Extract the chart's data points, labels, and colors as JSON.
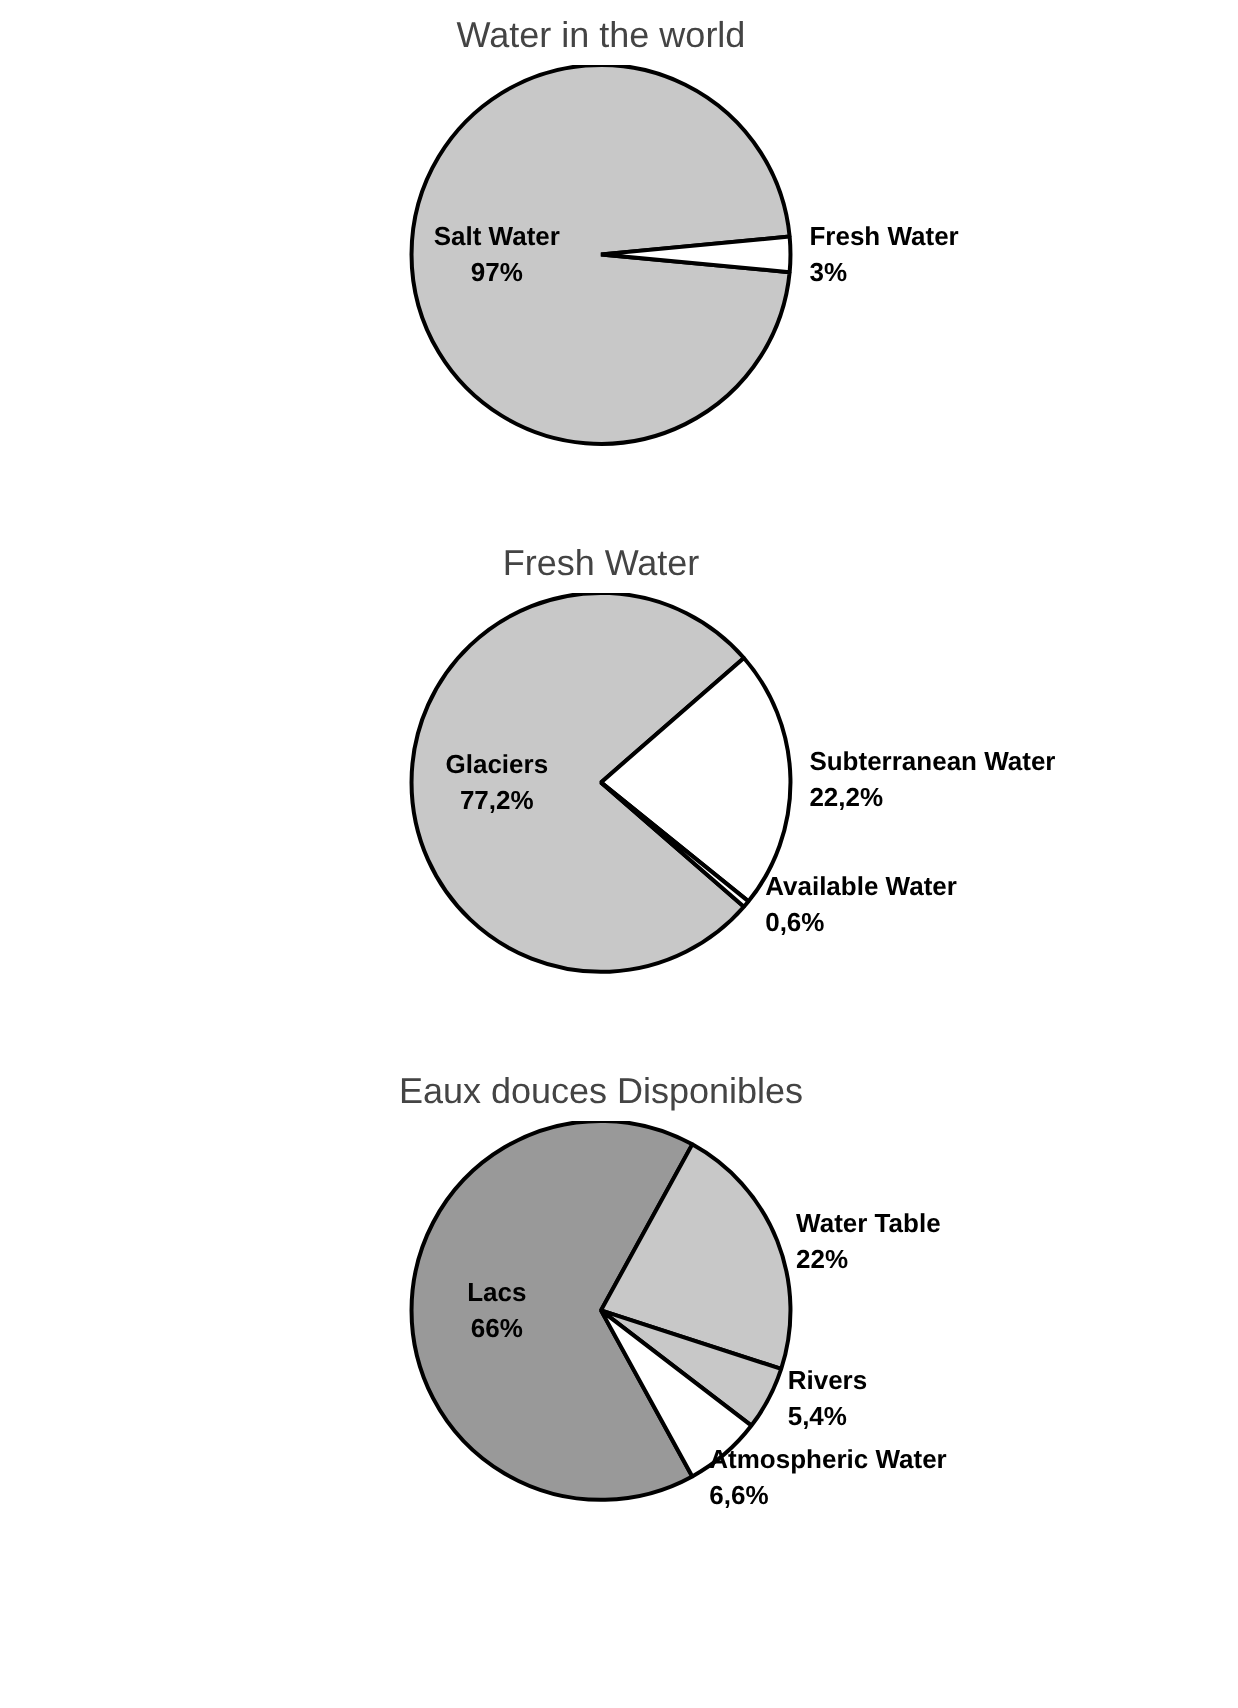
{
  "chart_data": [
    {
      "type": "pie",
      "title": "Water in the world",
      "categories": [
        "Salt Water",
        "Fresh Water"
      ],
      "values": [
        97,
        3
      ],
      "colors": [
        "#c8c8c8",
        "#ffffff"
      ],
      "value_labels": [
        "97%",
        "3%"
      ]
    },
    {
      "type": "pie",
      "title": "Fresh Water",
      "categories": [
        "Glaciers",
        "Subterranean Water",
        "Available Water"
      ],
      "values": [
        77.2,
        22.2,
        0.6
      ],
      "colors": [
        "#c8c8c8",
        "#ffffff",
        "#ffffff"
      ],
      "value_labels": [
        "77,2%",
        "22,2%",
        "0,6%"
      ]
    },
    {
      "type": "pie",
      "title": "Eaux douces Disponibles",
      "categories": [
        "Lacs",
        "Water Table",
        "Rivers",
        "Atmospheric Water"
      ],
      "values": [
        66,
        22,
        5.4,
        6.6
      ],
      "colors": [
        "#999999",
        "#c8c8c8",
        "#c8c8c8",
        "#ffffff"
      ],
      "value_labels": [
        "66%",
        "22%",
        "5,4%",
        "6,6%"
      ]
    }
  ]
}
